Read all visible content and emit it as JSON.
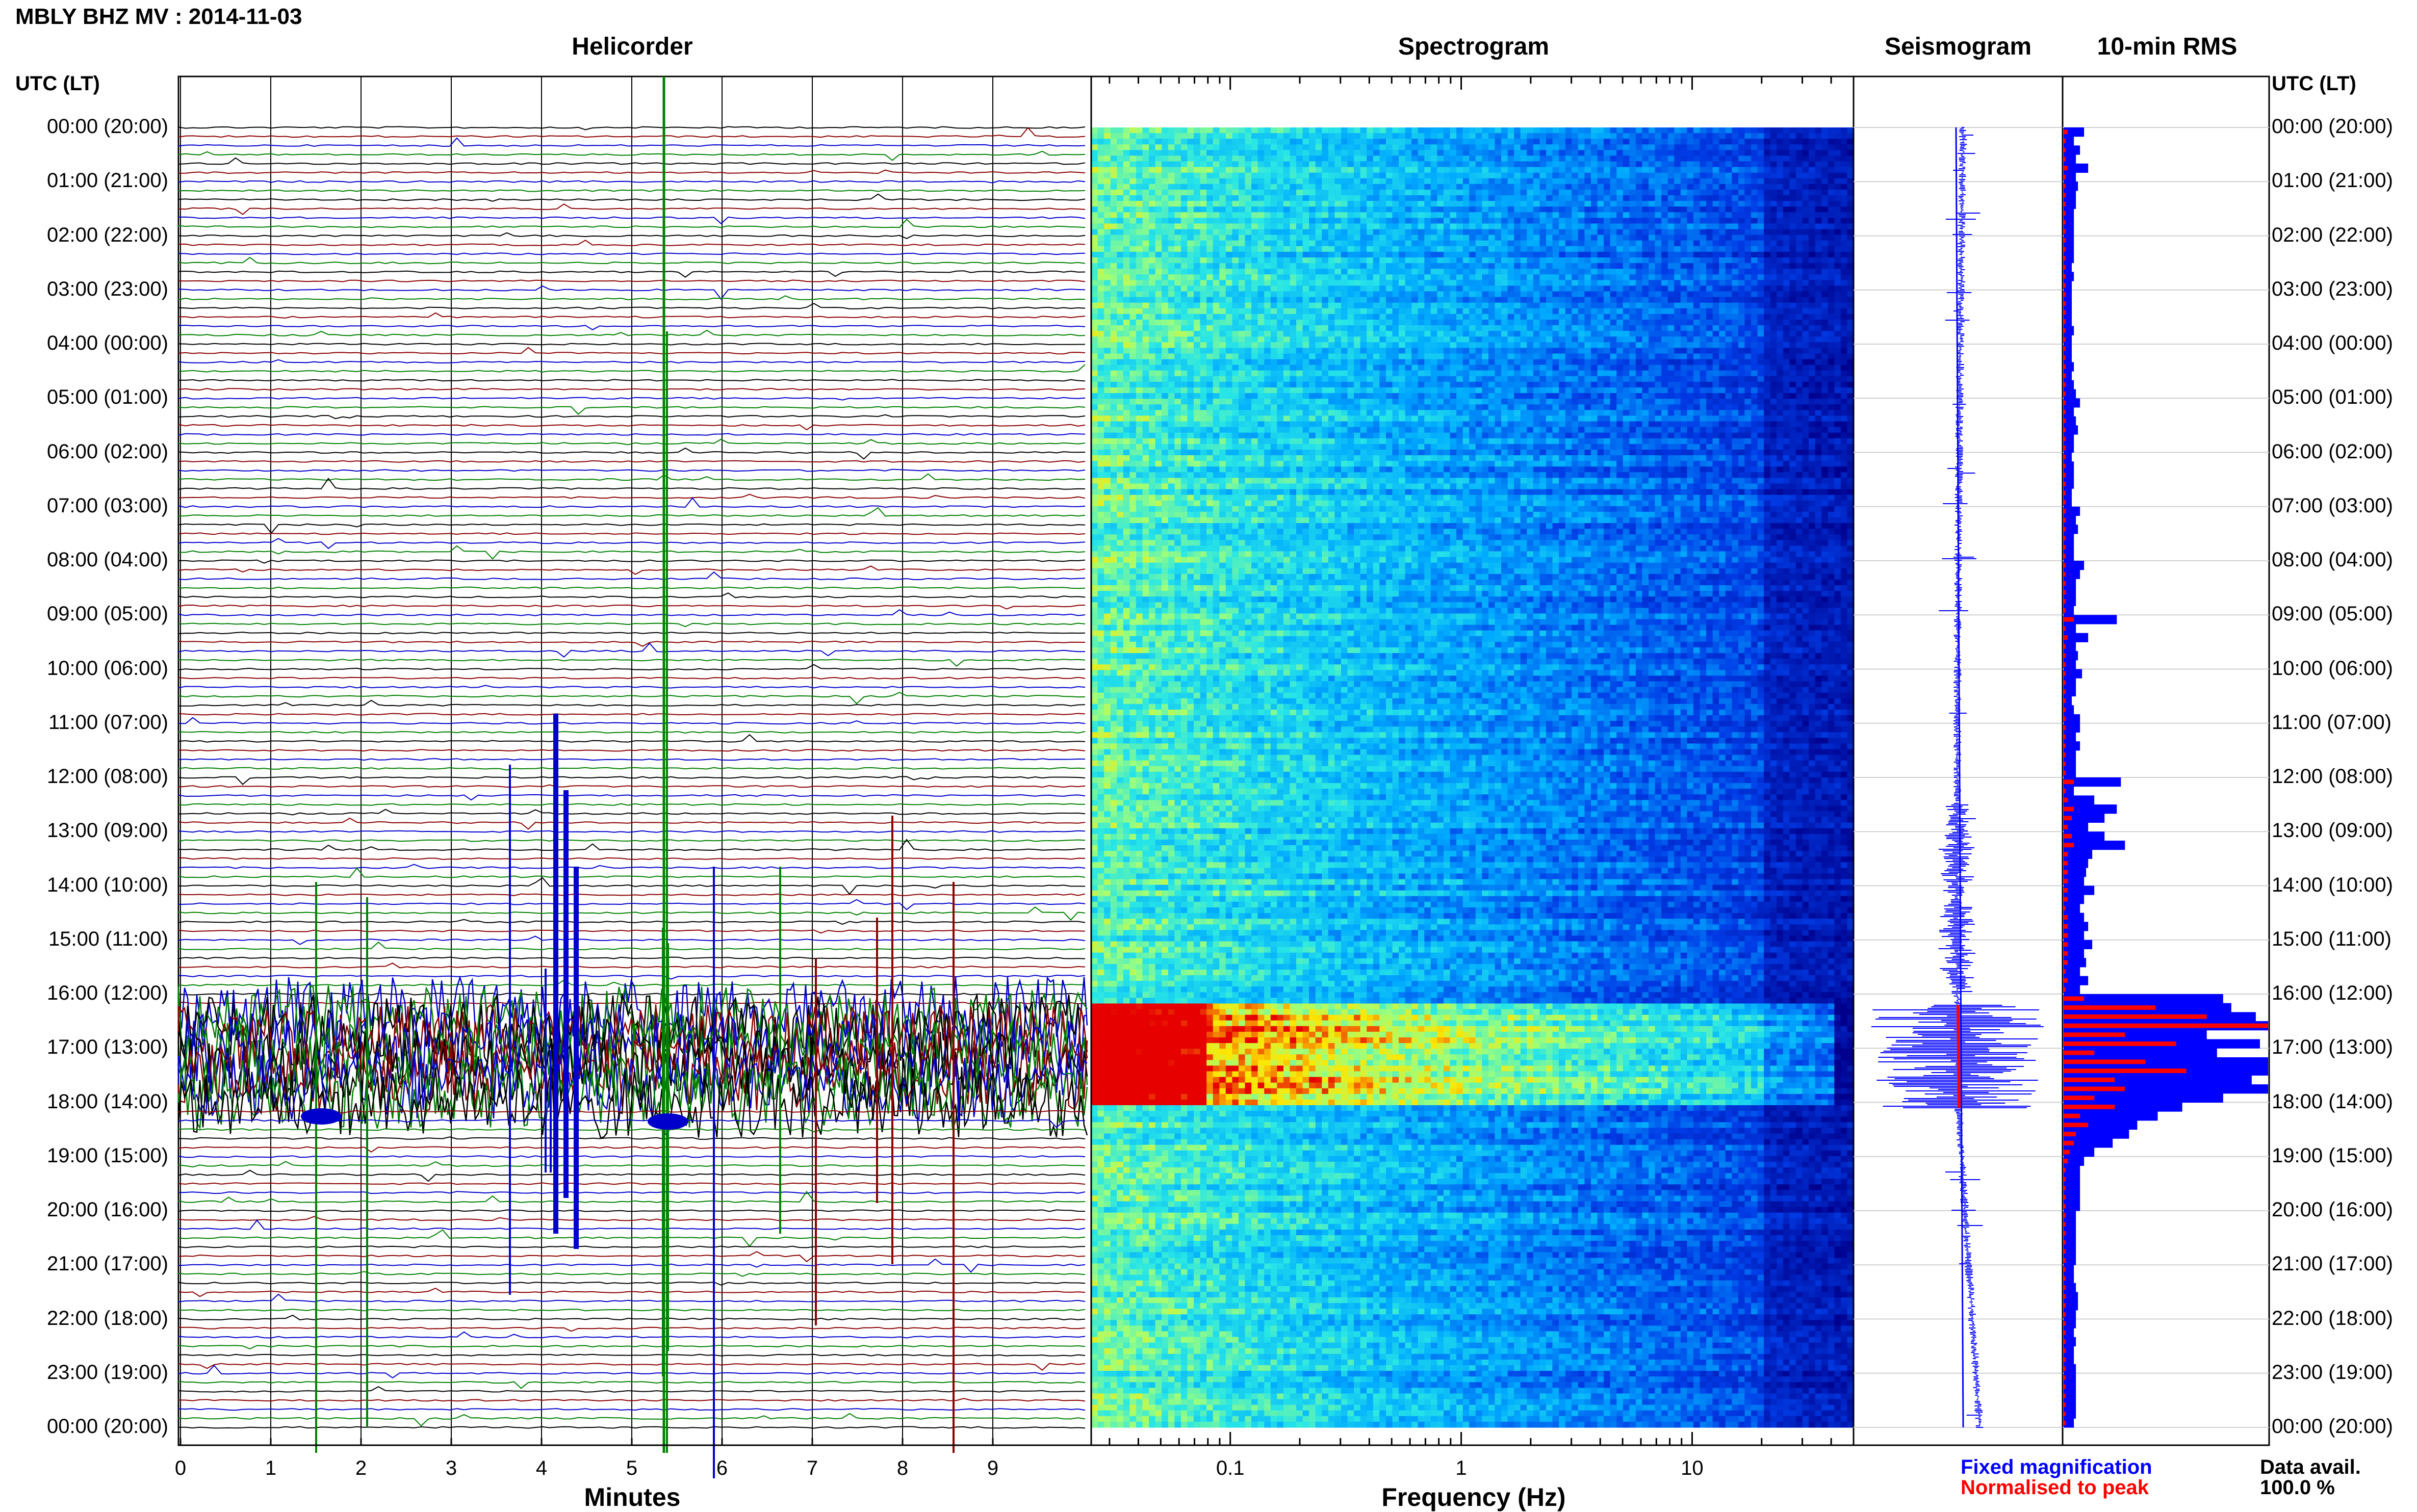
{
  "title": "MBLY BHZ MV : 2014-11-03",
  "panels": {
    "helicorder": "Helicorder",
    "spectrogram": "Spectrogram",
    "seismogram": "Seismogram",
    "rms": "10-min RMS"
  },
  "time_axis_label_left": "UTC (LT)",
  "time_axis_label_right": "UTC (LT)",
  "time_ticks": [
    "00:00 (20:00)",
    "01:00 (21:00)",
    "02:00 (22:00)",
    "03:00 (23:00)",
    "04:00 (00:00)",
    "05:00 (01:00)",
    "06:00 (02:00)",
    "07:00 (03:00)",
    "08:00 (04:00)",
    "09:00 (05:00)",
    "10:00 (06:00)",
    "11:00 (07:00)",
    "12:00 (08:00)",
    "13:00 (09:00)",
    "14:00 (10:00)",
    "15:00 (11:00)",
    "16:00 (12:00)",
    "17:00 (13:00)",
    "18:00 (14:00)",
    "19:00 (15:00)",
    "20:00 (16:00)",
    "21:00 (17:00)",
    "22:00 (18:00)",
    "23:00 (19:00)",
    "00:00 (20:00)"
  ],
  "helicorder_xticks": [
    "0",
    "1",
    "2",
    "3",
    "4",
    "5",
    "6",
    "7",
    "8",
    "9"
  ],
  "helicorder_xlabel": "Minutes",
  "spectrogram_xticks": [
    "0.1",
    "1",
    "10"
  ],
  "spectrogram_xlabel": "Frequency (Hz)",
  "legend": {
    "fixed": "Fixed magnification",
    "normalised": "Normalised to peak"
  },
  "data_avail_label": "Data avail.",
  "data_avail_value": "100.0 %",
  "colors": {
    "trace_cycle": [
      "#000000",
      "#8b0000",
      "#0000cd",
      "#008000"
    ],
    "fixed": "#0000ff",
    "normalised": "#ff0000"
  },
  "chart_data": {
    "type": "heatmap",
    "time_hours_range": [
      0,
      24
    ],
    "helicorder_minutes_range": [
      0,
      10
    ],
    "spectrogram_freq_range_hz": [
      0.025,
      50
    ],
    "spectrogram_xscale": "log",
    "active_period_utc_hours": [
      16.2,
      18.1
    ],
    "rms_fixed": [
      0.1,
      0.05,
      0.08,
      0.06,
      0.12,
      0.06,
      0.07,
      0.06,
      0.06,
      0.05,
      0.05,
      0.05,
      0.05,
      0.05,
      0.05,
      0.04,
      0.05,
      0.04,
      0.04,
      0.04,
      0.04,
      0.04,
      0.05,
      0.04,
      0.04,
      0.04,
      0.05,
      0.04,
      0.05,
      0.06,
      0.08,
      0.05,
      0.06,
      0.07,
      0.05,
      0.05,
      0.04,
      0.05,
      0.05,
      0.05,
      0.04,
      0.04,
      0.08,
      0.06,
      0.07,
      0.05,
      0.05,
      0.05,
      0.1,
      0.08,
      0.06,
      0.06,
      0.06,
      0.05,
      0.26,
      0.06,
      0.12,
      0.06,
      0.07,
      0.06,
      0.09,
      0.06,
      0.06,
      0.04,
      0.05,
      0.08,
      0.08,
      0.06,
      0.08,
      0.06,
      0.06,
      0.06,
      0.28,
      0.05,
      0.15,
      0.26,
      0.2,
      0.12,
      0.2,
      0.3,
      0.14,
      0.12,
      0.11,
      0.1,
      0.15,
      0.1,
      0.08,
      0.1,
      0.12,
      0.1,
      0.14,
      0.1,
      0.11,
      0.08,
      0.12,
      0.08,
      0.78,
      0.82,
      0.94,
      1.0,
      0.7,
      0.96,
      0.75,
      1.0,
      1.0,
      0.92,
      1.0,
      0.78,
      0.58,
      0.46,
      0.36,
      0.32,
      0.24,
      0.15,
      0.1,
      0.08,
      0.08,
      0.08,
      0.08,
      0.08,
      0.06,
      0.06,
      0.06,
      0.06,
      0.06,
      0.06,
      0.05,
      0.05,
      0.06,
      0.07,
      0.07,
      0.06,
      0.06,
      0.05,
      0.06,
      0.05,
      0.05,
      0.06,
      0.06,
      0.06,
      0.06,
      0.06,
      0.06,
      0.05
    ],
    "rms_normalised": [
      0.02,
      0.01,
      0.01,
      0.01,
      0.02,
      0.01,
      0.01,
      0.01,
      0.01,
      0.01,
      0.01,
      0.01,
      0.01,
      0.01,
      0.01,
      0.01,
      0.01,
      0.01,
      0.01,
      0.01,
      0.01,
      0.01,
      0.01,
      0.01,
      0.01,
      0.01,
      0.01,
      0.01,
      0.01,
      0.01,
      0.01,
      0.01,
      0.01,
      0.01,
      0.01,
      0.01,
      0.01,
      0.01,
      0.01,
      0.01,
      0.01,
      0.01,
      0.01,
      0.01,
      0.01,
      0.01,
      0.01,
      0.01,
      0.01,
      0.01,
      0.01,
      0.01,
      0.01,
      0.01,
      0.05,
      0.01,
      0.02,
      0.01,
      0.01,
      0.01,
      0.01,
      0.01,
      0.01,
      0.01,
      0.01,
      0.01,
      0.01,
      0.01,
      0.01,
      0.01,
      0.01,
      0.01,
      0.05,
      0.01,
      0.02,
      0.05,
      0.04,
      0.02,
      0.04,
      0.05,
      0.02,
      0.02,
      0.02,
      0.02,
      0.02,
      0.02,
      0.01,
      0.02,
      0.02,
      0.02,
      0.02,
      0.02,
      0.02,
      0.01,
      0.02,
      0.01,
      0.1,
      0.45,
      0.7,
      1.0,
      0.3,
      0.55,
      0.15,
      0.4,
      0.6,
      0.25,
      0.3,
      0.15,
      0.25,
      0.08,
      0.12,
      0.06,
      0.05,
      0.03,
      0.02,
      0.01,
      0.01,
      0.01,
      0.01,
      0.01,
      0.01,
      0.01,
      0.01,
      0.01,
      0.01,
      0.01,
      0.01,
      0.01,
      0.01,
      0.01,
      0.01,
      0.01,
      0.01,
      0.01,
      0.01,
      0.01,
      0.01,
      0.01,
      0.01,
      0.01,
      0.01,
      0.01,
      0.01,
      0.01
    ]
  }
}
